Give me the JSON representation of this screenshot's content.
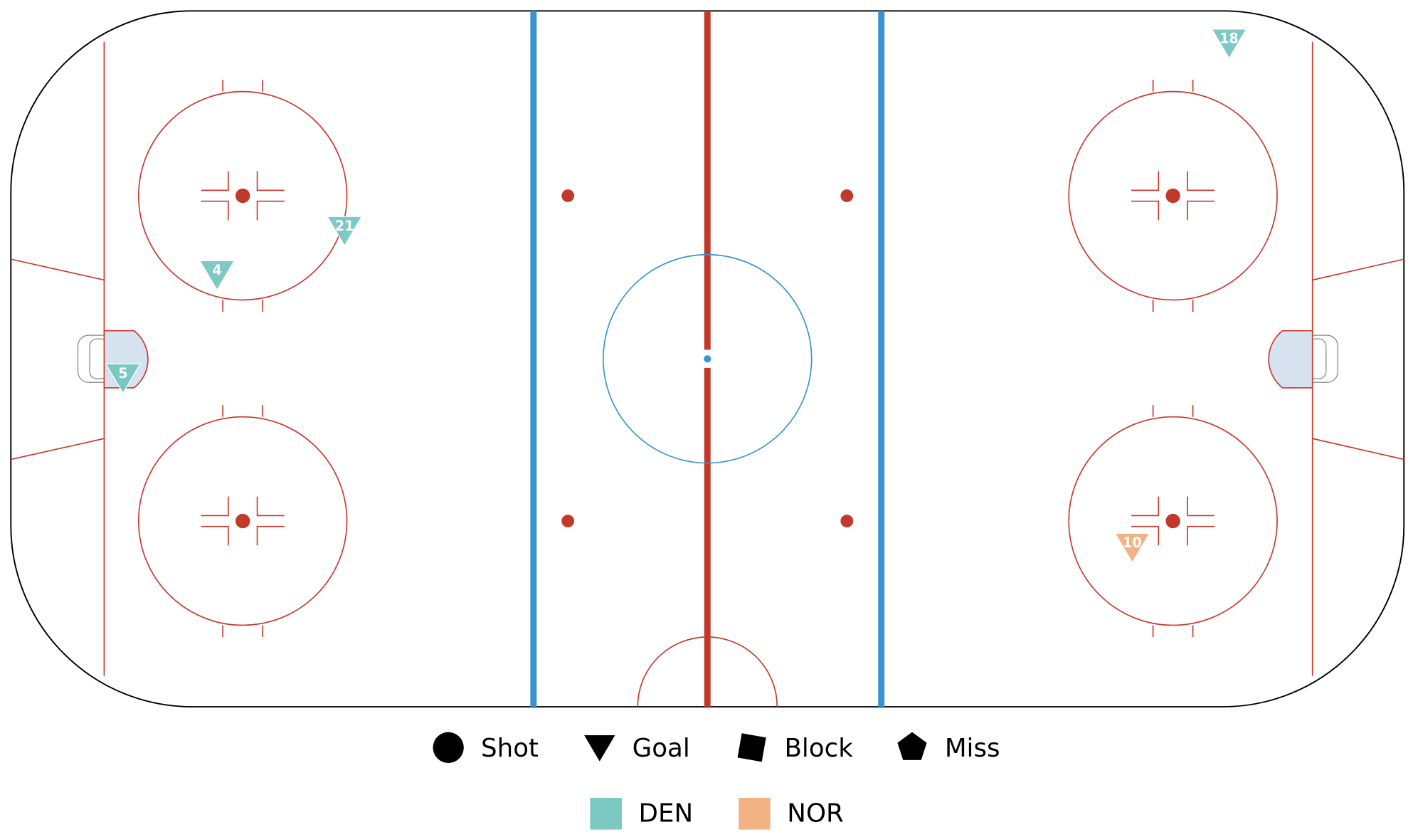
{
  "chart_data": {
    "type": "shot-map",
    "xlim": [
      -100,
      100
    ],
    "ylim": [
      -42.5,
      42.5
    ],
    "event_types": [
      "Shot",
      "Goal",
      "Block",
      "Miss"
    ],
    "teams": [
      {
        "name": "DEN",
        "color": "#76c6c0"
      },
      {
        "name": "NOR",
        "color": "#f2ae7e"
      }
    ],
    "events": [
      {
        "label": "21",
        "team": "DEN",
        "event": "Goal",
        "x": -52.1,
        "y": 15.7
      },
      {
        "label": "4",
        "team": "DEN",
        "event": "Goal",
        "x": -70.4,
        "y": 10.3
      },
      {
        "label": "5",
        "team": "DEN",
        "event": "Goal",
        "x": -83.9,
        "y": -2.3
      },
      {
        "label": "18",
        "team": "DEN",
        "event": "Goal",
        "x": 74.9,
        "y": 38.6
      },
      {
        "label": "10",
        "team": "NOR",
        "event": "Goal",
        "x": 61.0,
        "y": -23.0
      }
    ]
  }
}
